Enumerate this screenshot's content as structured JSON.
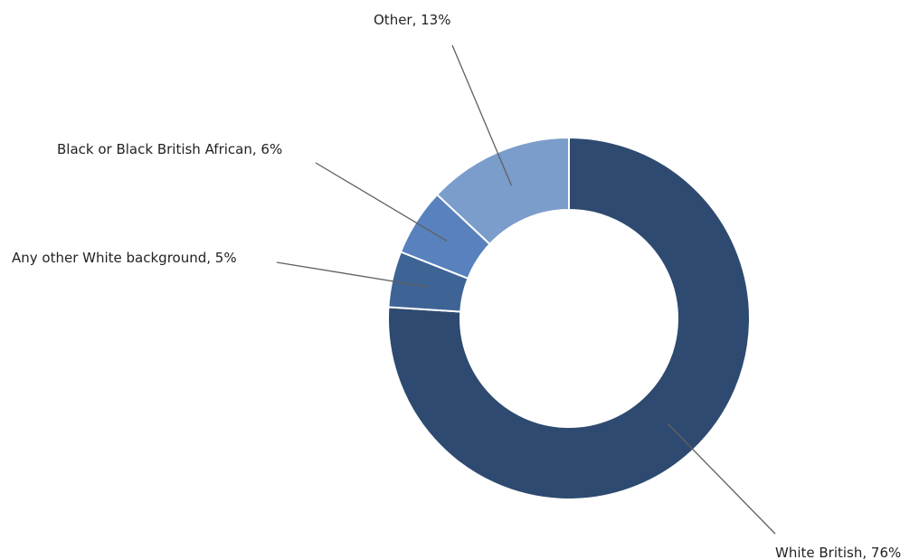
{
  "chart_data": {
    "type": "pie",
    "donut": true,
    "start_angle_deg": 0,
    "direction": "clockwise",
    "slices": [
      {
        "name": "White British",
        "value": 76,
        "label": "White British, 76%",
        "color": "#2e4a70"
      },
      {
        "name": "Any other White background",
        "value": 5,
        "label": "Any other White background, 5%",
        "color": "#3e6496"
      },
      {
        "name": "Black or Black British African",
        "value": 6,
        "label": "Black or Black British African, 6%",
        "color": "#5881bd"
      },
      {
        "name": "Other",
        "value": 13,
        "label": "Other, 13%",
        "color": "#7b9dcb"
      }
    ]
  }
}
